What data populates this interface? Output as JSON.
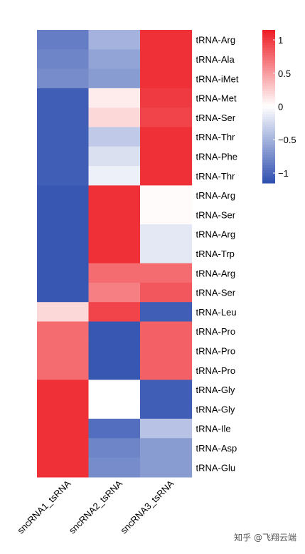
{
  "chart_data": {
    "type": "heatmap",
    "columns": [
      "sncRNA1_tsRNA",
      "sncRNA2_tsRNA",
      "sncRNA3_tsRNA"
    ],
    "rows": [
      "tRNA-Arg",
      "tRNA-Ala",
      "tRNA-iMet",
      "tRNA-Met",
      "tRNA-Ser",
      "tRNA-Thr",
      "tRNA-Phe",
      "tRNA-Thr",
      "tRNA-Arg",
      "tRNA-Ser",
      "tRNA-Arg",
      "tRNA-Trp",
      "tRNA-Arg",
      "tRNA-Ser",
      "tRNA-Leu",
      "tRNA-Pro",
      "tRNA-Pro",
      "tRNA-Pro",
      "tRNA-Gly",
      "tRNA-Gly",
      "tRNA-Ile",
      "tRNA-Asp",
      "tRNA-Glu"
    ],
    "values": [
      [
        -0.85,
        -0.5,
        1.05
      ],
      [
        -0.8,
        -0.6,
        1.05
      ],
      [
        -0.75,
        -0.65,
        1.05
      ],
      [
        -1.05,
        0.1,
        1.0
      ],
      [
        -1.05,
        0.2,
        0.95
      ],
      [
        -1.05,
        -0.35,
        1.05
      ],
      [
        -1.05,
        -0.2,
        1.05
      ],
      [
        -1.05,
        -0.1,
        1.05
      ],
      [
        -1.1,
        1.05,
        0.02
      ],
      [
        -1.1,
        1.05,
        0.02
      ],
      [
        -1.1,
        1.05,
        -0.15
      ],
      [
        -1.1,
        1.05,
        -0.15
      ],
      [
        -1.1,
        0.75,
        0.75
      ],
      [
        -1.1,
        0.65,
        0.85
      ],
      [
        0.2,
        0.95,
        -1.05
      ],
      [
        0.75,
        -1.1,
        0.8
      ],
      [
        0.75,
        -1.1,
        0.8
      ],
      [
        0.75,
        -1.1,
        0.8
      ],
      [
        1.05,
        0.0,
        -1.05
      ],
      [
        1.05,
        0.0,
        -1.05
      ],
      [
        1.05,
        -0.95,
        -0.4
      ],
      [
        1.05,
        -0.8,
        -0.65
      ],
      [
        1.05,
        -0.75,
        -0.65
      ]
    ],
    "scale": {
      "min": -1.15,
      "max": 1.15,
      "low_color": "#2f4fb0",
      "mid_color": "#ffffff",
      "high_color": "#ee1c24"
    },
    "legend": {
      "ticks": [
        1,
        0.5,
        0,
        -0.5,
        -1
      ],
      "tick_labels": [
        "1",
        "0.5",
        "0",
        "−0.5",
        "−1"
      ],
      "placement": "top-right"
    },
    "title": "",
    "xlabel": "",
    "ylabel": ""
  },
  "watermark": "知乎 @飞翔云端"
}
